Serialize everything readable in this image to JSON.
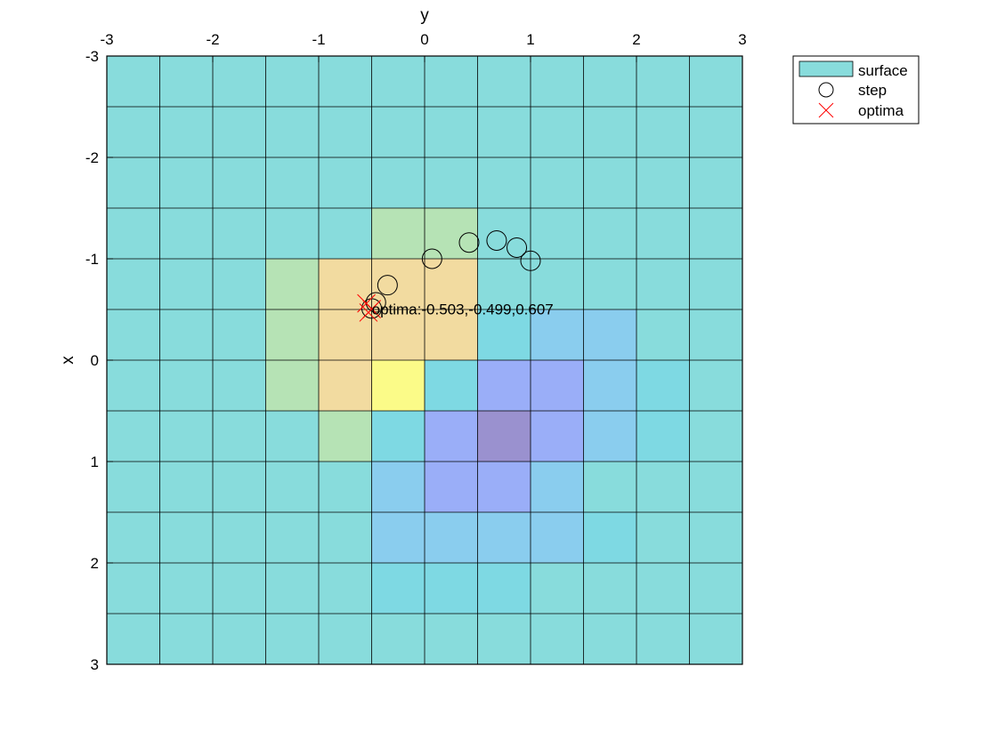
{
  "chart_data": {
    "type": "heatmap",
    "xlabel": "y",
    "ylabel": "x",
    "xlim": [
      -3,
      3
    ],
    "ylim": [
      -3,
      3
    ],
    "x_axis_position": "top",
    "y_axis_direction": "reversed",
    "grid": true,
    "x_ticks": [
      "-3",
      "-2",
      "-1",
      "0",
      "1",
      "2",
      "3"
    ],
    "y_ticks": [
      "-3",
      "-2",
      "-1",
      "0",
      "1",
      "2",
      "3"
    ],
    "grid_step": 0.5,
    "colors": {
      "base": "#88dcdc",
      "neutral_low": "#7ed9e3",
      "low": "#8acdee",
      "lower": "#9aaef8",
      "min": "#9a91cf",
      "mid": "#b6e3b5",
      "high": "#f2dba0",
      "peak": "#fbfb88",
      "step_marker": "#000000",
      "optima_marker": "#ff0000"
    },
    "surface_cells": [
      {
        "x": 0.25,
        "y": -0.25,
        "level": "peak"
      },
      {
        "x": -0.25,
        "y": -0.25,
        "level": "high"
      },
      {
        "x": -0.25,
        "y": -0.75,
        "level": "high"
      },
      {
        "x": -0.75,
        "y": -0.75,
        "level": "high"
      },
      {
        "x": -0.75,
        "y": -0.25,
        "level": "high"
      },
      {
        "x": -0.75,
        "y": 0.25,
        "level": "high"
      },
      {
        "x": -0.25,
        "y": 0.25,
        "level": "high"
      },
      {
        "x": 0.25,
        "y": -0.75,
        "level": "high"
      },
      {
        "x": -1.25,
        "y": -0.25,
        "level": "mid"
      },
      {
        "x": -1.25,
        "y": 0.25,
        "level": "mid"
      },
      {
        "x": -0.75,
        "y": -1.25,
        "level": "mid"
      },
      {
        "x": -0.25,
        "y": -1.25,
        "level": "mid"
      },
      {
        "x": 0.25,
        "y": -1.25,
        "level": "mid"
      },
      {
        "x": 0.75,
        "y": -0.75,
        "level": "mid"
      },
      {
        "x": 0.25,
        "y": 0.75,
        "level": "lower"
      },
      {
        "x": 0.25,
        "y": 1.25,
        "level": "lower"
      },
      {
        "x": 0.75,
        "y": 0.25,
        "level": "lower"
      },
      {
        "x": 0.75,
        "y": 0.75,
        "level": "min"
      },
      {
        "x": 0.75,
        "y": 1.25,
        "level": "lower"
      },
      {
        "x": 1.25,
        "y": 0.25,
        "level": "lower"
      },
      {
        "x": 1.25,
        "y": 0.75,
        "level": "lower"
      },
      {
        "x": 1.25,
        "y": 1.25,
        "level": "low"
      },
      {
        "x": 1.25,
        "y": -0.25,
        "level": "low"
      },
      {
        "x": -0.25,
        "y": 1.25,
        "level": "low"
      },
      {
        "x": -0.25,
        "y": 1.75,
        "level": "low"
      },
      {
        "x": 0.25,
        "y": 1.75,
        "level": "low"
      },
      {
        "x": 0.75,
        "y": 1.75,
        "level": "low"
      },
      {
        "x": 1.75,
        "y": -0.25,
        "level": "low"
      },
      {
        "x": 1.75,
        "y": 0.25,
        "level": "low"
      },
      {
        "x": 1.75,
        "y": 0.75,
        "level": "low"
      },
      {
        "x": 1.75,
        "y": 1.25,
        "level": "low"
      },
      {
        "x": -0.25,
        "y": 0.75,
        "level": "neutral_low"
      },
      {
        "x": 0.25,
        "y": 2.25,
        "level": "neutral_low"
      },
      {
        "x": 0.75,
        "y": 2.25,
        "level": "neutral_low"
      },
      {
        "x": 1.75,
        "y": 1.75,
        "level": "neutral_low"
      },
      {
        "x": 2.25,
        "y": 0.25,
        "level": "neutral_low"
      },
      {
        "x": 2.25,
        "y": 0.75,
        "level": "neutral_low"
      },
      {
        "x": 2.25,
        "y": -0.25,
        "level": "neutral_low"
      },
      {
        "x": 0.75,
        "y": -0.25,
        "level": "neutral_low"
      },
      {
        "x": 0.25,
        "y": 0.25,
        "level": "neutral_low"
      }
    ],
    "series": [
      {
        "name": "step",
        "marker": "circle",
        "points": [
          {
            "y": 1.0,
            "x": -0.98
          },
          {
            "y": 0.87,
            "x": -1.11
          },
          {
            "y": 0.68,
            "x": -1.18
          },
          {
            "y": 0.42,
            "x": -1.16
          },
          {
            "y": 0.07,
            "x": -1.0
          },
          {
            "y": -0.35,
            "x": -0.74
          },
          {
            "y": -0.46,
            "x": -0.57
          },
          {
            "y": -0.5,
            "x": -0.51
          }
        ]
      },
      {
        "name": "optima",
        "marker": "x",
        "points": [
          {
            "y": -0.55,
            "x": -0.56
          },
          {
            "y": -0.499,
            "x": -0.503
          },
          {
            "y": -0.53,
            "x": -0.47
          }
        ]
      }
    ],
    "annotations": [
      {
        "text": "optima:-0.503,-0.499,0.607",
        "y": -0.499,
        "x": -0.503
      }
    ],
    "legend": {
      "placement": "top-right-outside",
      "entries": [
        {
          "label": "surface",
          "symbol": "patch"
        },
        {
          "label": "step",
          "symbol": "circle"
        },
        {
          "label": "optima",
          "symbol": "x"
        }
      ]
    }
  }
}
